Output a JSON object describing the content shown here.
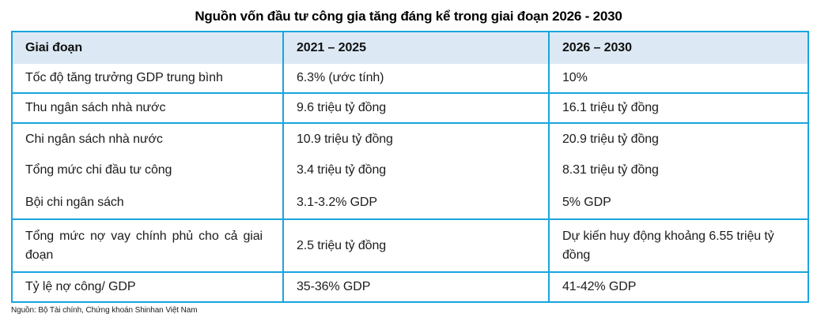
{
  "title": "Nguồn vốn đầu tư công gia tăng đáng kể trong giai đoạn 2026 - 2030",
  "colors": {
    "border": "#18a5de",
    "header_background": "#dce9f5",
    "text": "#1c1c1c"
  },
  "table": {
    "headers": [
      "Giai đoạn",
      "2021 – 2025",
      "2026 – 2030"
    ],
    "row_groups": [
      {
        "rows": [
          [
            "Tốc độ tăng trưởng GDP trung bình",
            "6.3% (ước tính)",
            "10%"
          ]
        ]
      },
      {
        "rows": [
          [
            "Thu ngân sách nhà nước",
            "9.6 triệu tỷ đồng",
            "16.1 triệu tỷ đồng"
          ]
        ]
      },
      {
        "rows": [
          [
            "Chi ngân sách nhà nước",
            "10.9 triệu tỷ đồng",
            "20.9 triệu tỷ đồng"
          ],
          [
            "Tổng mức chi đầu tư công",
            "3.4 triệu tỷ đồng",
            "8.31 triệu tỷ đồng"
          ],
          [
            "Bội chi ngân sách",
            "3.1-3.2% GDP",
            "5% GDP"
          ]
        ]
      },
      {
        "rows": [
          [
            "Tổng mức nợ vay chính phủ cho cả giai đoạn",
            "2.5 triệu tỷ đồng",
            "Dự kiến huy động khoảng 6.55 triệu tỷ đồng"
          ]
        ]
      },
      {
        "rows": [
          [
            "Tỷ lệ nợ công/ GDP",
            "35-36% GDP",
            "41-42% GDP"
          ]
        ]
      }
    ]
  },
  "source": "Nguồn: Bộ Tài chính, Chứng khoán Shinhan Việt Nam"
}
